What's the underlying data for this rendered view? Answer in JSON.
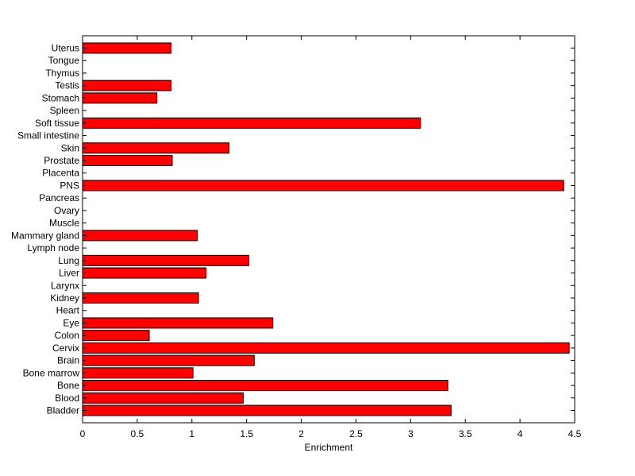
{
  "chart_data": {
    "type": "bar",
    "orientation": "horizontal",
    "title": "",
    "xlabel": "Enrichment",
    "ylabel": "",
    "xlim": [
      0,
      4.5
    ],
    "xticks": [
      0,
      0.5,
      1,
      1.5,
      2,
      2.5,
      3,
      3.5,
      4,
      4.5
    ],
    "grid": false,
    "bar_color": "#ff0000",
    "categories": [
      "Bladder",
      "Blood",
      "Bone",
      "Bone marrow",
      "Brain",
      "Cervix",
      "Colon",
      "Eye",
      "Heart",
      "Kidney",
      "Larynx",
      "Liver",
      "Lung",
      "Lymph node",
      "Mammary gland",
      "Muscle",
      "Ovary",
      "Pancreas",
      "PNS",
      "Placenta",
      "Prostate",
      "Skin",
      "Small intestine",
      "Soft tissue",
      "Spleen",
      "Stomach",
      "Testis",
      "Thymus",
      "Tongue",
      "Uterus"
    ],
    "values": [
      3.37,
      1.47,
      3.34,
      1.01,
      1.57,
      4.45,
      0.61,
      1.74,
      0,
      1.06,
      0,
      1.13,
      1.52,
      0,
      1.05,
      0,
      0,
      0,
      4.4,
      0,
      0.82,
      1.34,
      0,
      3.09,
      0,
      0.68,
      0.81,
      0,
      0,
      0.81
    ]
  }
}
